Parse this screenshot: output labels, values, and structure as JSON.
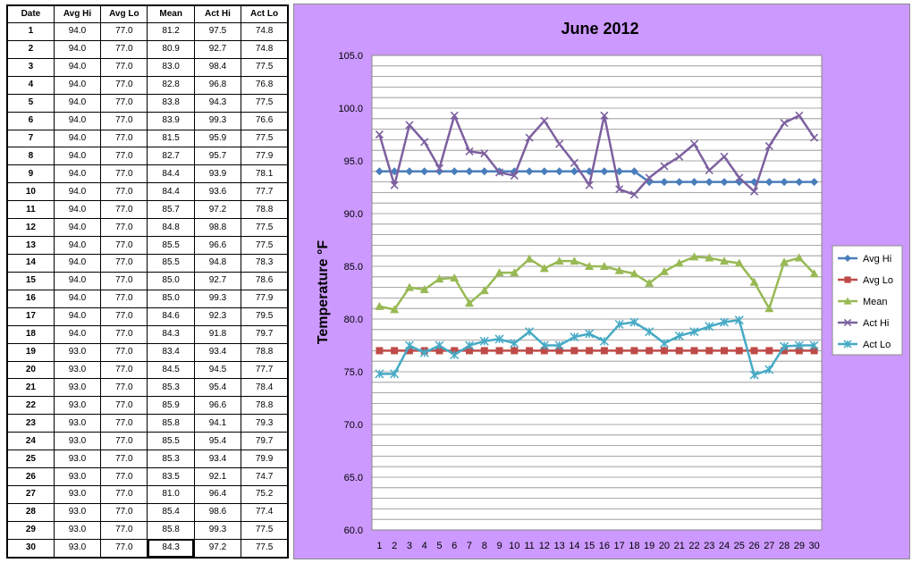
{
  "table": {
    "headers": [
      "Date",
      "Avg Hi",
      "Avg Lo",
      "Mean",
      "Act Hi",
      "Act Lo"
    ],
    "rows": [
      [
        "1",
        "94.0",
        "77.0",
        "81.2",
        "97.5",
        "74.8"
      ],
      [
        "2",
        "94.0",
        "77.0",
        "80.9",
        "92.7",
        "74.8"
      ],
      [
        "3",
        "94.0",
        "77.0",
        "83.0",
        "98.4",
        "77.5"
      ],
      [
        "4",
        "94.0",
        "77.0",
        "82.8",
        "96.8",
        "76.8"
      ],
      [
        "5",
        "94.0",
        "77.0",
        "83.8",
        "94.3",
        "77.5"
      ],
      [
        "6",
        "94.0",
        "77.0",
        "83.9",
        "99.3",
        "76.6"
      ],
      [
        "7",
        "94.0",
        "77.0",
        "81.5",
        "95.9",
        "77.5"
      ],
      [
        "8",
        "94.0",
        "77.0",
        "82.7",
        "95.7",
        "77.9"
      ],
      [
        "9",
        "94.0",
        "77.0",
        "84.4",
        "93.9",
        "78.1"
      ],
      [
        "10",
        "94.0",
        "77.0",
        "84.4",
        "93.6",
        "77.7"
      ],
      [
        "11",
        "94.0",
        "77.0",
        "85.7",
        "97.2",
        "78.8"
      ],
      [
        "12",
        "94.0",
        "77.0",
        "84.8",
        "98.8",
        "77.5"
      ],
      [
        "13",
        "94.0",
        "77.0",
        "85.5",
        "96.6",
        "77.5"
      ],
      [
        "14",
        "94.0",
        "77.0",
        "85.5",
        "94.8",
        "78.3"
      ],
      [
        "15",
        "94.0",
        "77.0",
        "85.0",
        "92.7",
        "78.6"
      ],
      [
        "16",
        "94.0",
        "77.0",
        "85.0",
        "99.3",
        "77.9"
      ],
      [
        "17",
        "94.0",
        "77.0",
        "84.6",
        "92.3",
        "79.5"
      ],
      [
        "18",
        "94.0",
        "77.0",
        "84.3",
        "91.8",
        "79.7"
      ],
      [
        "19",
        "93.0",
        "77.0",
        "83.4",
        "93.4",
        "78.8"
      ],
      [
        "20",
        "93.0",
        "77.0",
        "84.5",
        "94.5",
        "77.7"
      ],
      [
        "21",
        "93.0",
        "77.0",
        "85.3",
        "95.4",
        "78.4"
      ],
      [
        "22",
        "93.0",
        "77.0",
        "85.9",
        "96.6",
        "78.8"
      ],
      [
        "23",
        "93.0",
        "77.0",
        "85.8",
        "94.1",
        "79.3"
      ],
      [
        "24",
        "93.0",
        "77.0",
        "85.5",
        "95.4",
        "79.7"
      ],
      [
        "25",
        "93.0",
        "77.0",
        "85.3",
        "93.4",
        "79.9"
      ],
      [
        "26",
        "93.0",
        "77.0",
        "83.5",
        "92.1",
        "74.7"
      ],
      [
        "27",
        "93.0",
        "77.0",
        "81.0",
        "96.4",
        "75.2"
      ],
      [
        "28",
        "93.0",
        "77.0",
        "85.4",
        "98.6",
        "77.4"
      ],
      [
        "29",
        "93.0",
        "77.0",
        "85.8",
        "99.3",
        "77.5"
      ],
      [
        "30",
        "93.0",
        "77.0",
        "84.3",
        "97.2",
        "77.5"
      ]
    ]
  },
  "chart_data": {
    "type": "line",
    "title": "June 2012",
    "xlabel": "",
    "ylabel": "Temperature °F",
    "ylim": [
      60,
      105
    ],
    "yticks": [
      "60.0",
      "65.0",
      "70.0",
      "75.0",
      "80.0",
      "85.0",
      "90.0",
      "95.0",
      "100.0",
      "105.0"
    ],
    "y_minor_step": 1,
    "grid": true,
    "legend_position": "right",
    "x": [
      1,
      2,
      3,
      4,
      5,
      6,
      7,
      8,
      9,
      10,
      11,
      12,
      13,
      14,
      15,
      16,
      17,
      18,
      19,
      20,
      21,
      22,
      23,
      24,
      25,
      26,
      27,
      28,
      29,
      30
    ],
    "series": [
      {
        "name": "Avg Hi",
        "color": "#4a7ebb",
        "marker": "diamond",
        "values": [
          94.0,
          94.0,
          94.0,
          94.0,
          94.0,
          94.0,
          94.0,
          94.0,
          94.0,
          94.0,
          94.0,
          94.0,
          94.0,
          94.0,
          94.0,
          94.0,
          94.0,
          94.0,
          93.0,
          93.0,
          93.0,
          93.0,
          93.0,
          93.0,
          93.0,
          93.0,
          93.0,
          93.0,
          93.0,
          93.0
        ]
      },
      {
        "name": "Avg Lo",
        "color": "#be4b48",
        "marker": "square",
        "values": [
          77.0,
          77.0,
          77.0,
          77.0,
          77.0,
          77.0,
          77.0,
          77.0,
          77.0,
          77.0,
          77.0,
          77.0,
          77.0,
          77.0,
          77.0,
          77.0,
          77.0,
          77.0,
          77.0,
          77.0,
          77.0,
          77.0,
          77.0,
          77.0,
          77.0,
          77.0,
          77.0,
          77.0,
          77.0,
          77.0
        ]
      },
      {
        "name": "Mean",
        "color": "#98b954",
        "marker": "triangle",
        "values": [
          81.2,
          80.9,
          83.0,
          82.8,
          83.8,
          83.9,
          81.5,
          82.7,
          84.4,
          84.4,
          85.7,
          84.8,
          85.5,
          85.5,
          85.0,
          85.0,
          84.6,
          84.3,
          83.4,
          84.5,
          85.3,
          85.9,
          85.8,
          85.5,
          85.3,
          83.5,
          81.0,
          85.4,
          85.8,
          84.3
        ]
      },
      {
        "name": "Act Hi",
        "color": "#7d60a0",
        "marker": "x",
        "values": [
          97.5,
          92.7,
          98.4,
          96.8,
          94.3,
          99.3,
          95.9,
          95.7,
          93.9,
          93.6,
          97.2,
          98.8,
          96.6,
          94.8,
          92.7,
          99.3,
          92.3,
          91.8,
          93.4,
          94.5,
          95.4,
          96.6,
          94.1,
          95.4,
          93.4,
          92.1,
          96.4,
          98.6,
          99.3,
          97.2
        ]
      },
      {
        "name": "Act Lo",
        "color": "#46aac5",
        "marker": "star",
        "values": [
          74.8,
          74.8,
          77.5,
          76.8,
          77.5,
          76.6,
          77.5,
          77.9,
          78.1,
          77.7,
          78.8,
          77.5,
          77.5,
          78.3,
          78.6,
          77.9,
          79.5,
          79.7,
          78.8,
          77.7,
          78.4,
          78.8,
          79.3,
          79.7,
          79.9,
          74.7,
          75.2,
          77.4,
          77.5,
          77.5
        ]
      }
    ]
  }
}
